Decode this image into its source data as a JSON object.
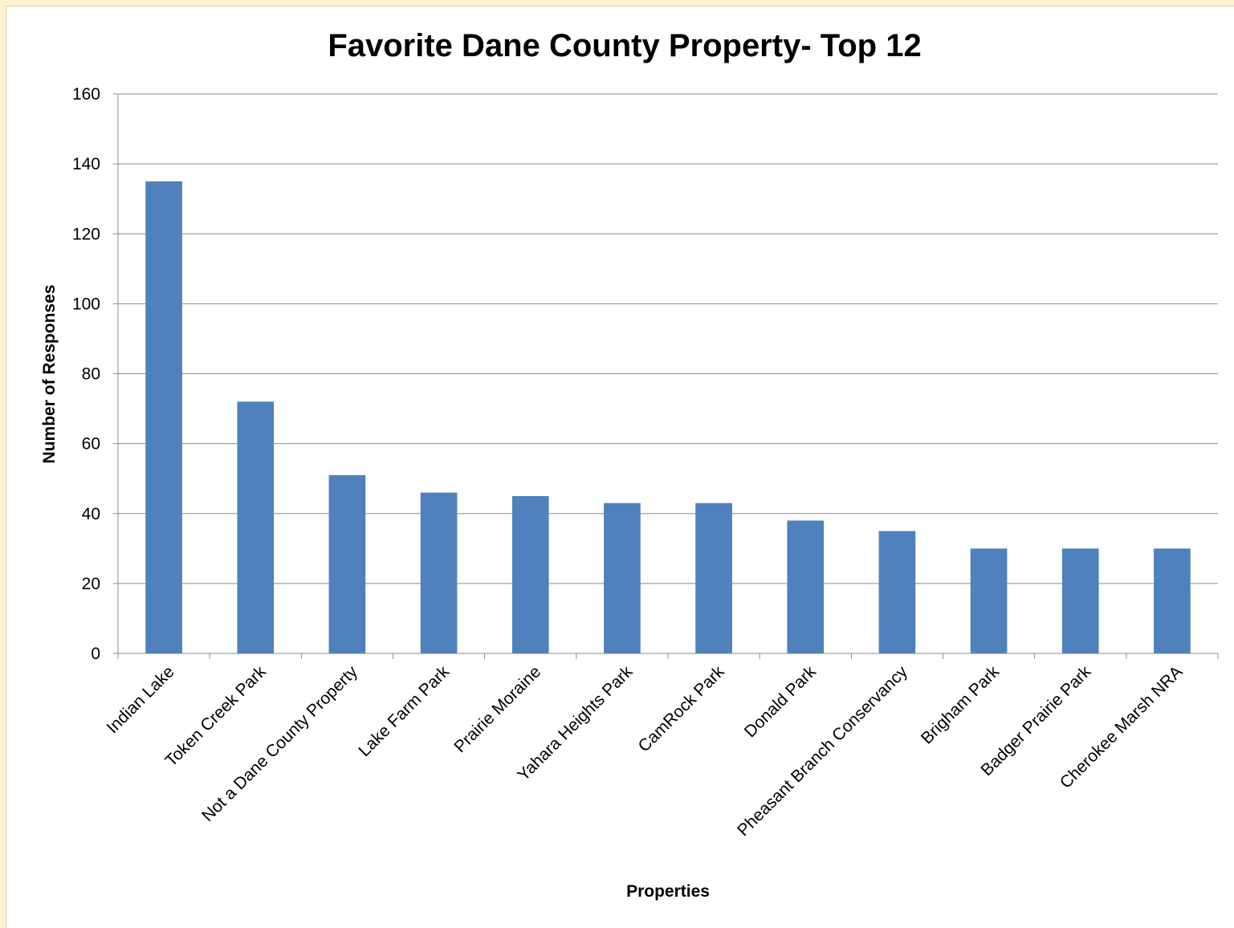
{
  "chart_data": {
    "type": "bar",
    "title": "Favorite Dane County Property- Top 12",
    "xlabel": "Properties",
    "ylabel": "Number of Responses",
    "ylim": [
      0,
      160
    ],
    "yticks": [
      0,
      20,
      40,
      60,
      80,
      100,
      120,
      140,
      160
    ],
    "grid": true,
    "legend": "none",
    "bar_color": "#4f81bd",
    "categories": [
      "Indian Lake",
      "Token Creek Park",
      "Not a Dane County Property",
      "Lake Farm Park",
      "Prairie Moraine",
      "Yahara Heights Park",
      "CamRock Park",
      "Donald Park",
      "Pheasant Branch Conservancy",
      "Brigham Park",
      "Badger Prairie Park",
      "Cherokee Marsh NRA"
    ],
    "values": [
      135,
      72,
      51,
      46,
      45,
      43,
      43,
      38,
      35,
      30,
      30,
      30
    ]
  }
}
